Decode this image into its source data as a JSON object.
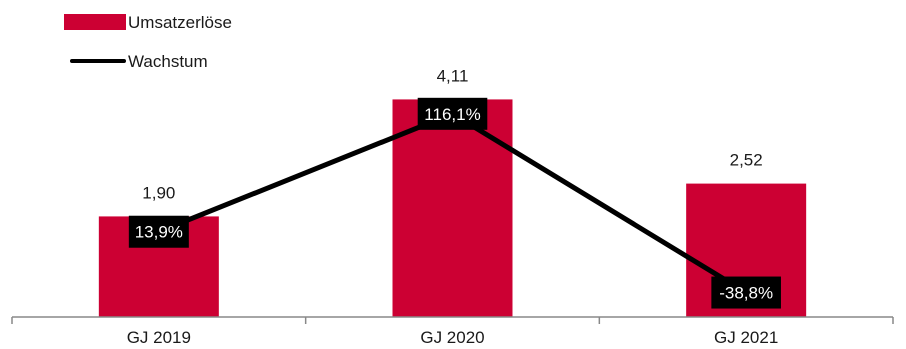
{
  "chart_data": {
    "type": "bar",
    "categories": [
      "GJ 2019",
      "GJ 2020",
      "GJ 2021"
    ],
    "series": [
      {
        "name": "Umsatzerlöse",
        "type": "bar",
        "values": [
          1.9,
          4.11,
          2.52
        ],
        "labels": [
          "1,90",
          "4,11",
          "2,52"
        ],
        "color": "#cc0033"
      },
      {
        "name": "Wachstum",
        "type": "line",
        "values": [
          13.9,
          116.1,
          -38.8
        ],
        "labels": [
          "13,9%",
          "116,1%",
          "-38,8%"
        ],
        "color": "#000000"
      }
    ],
    "ylim": [
      0,
      5
    ],
    "growth_ylim": [
      -60,
      200
    ],
    "grid": false,
    "legend": "top-left"
  }
}
